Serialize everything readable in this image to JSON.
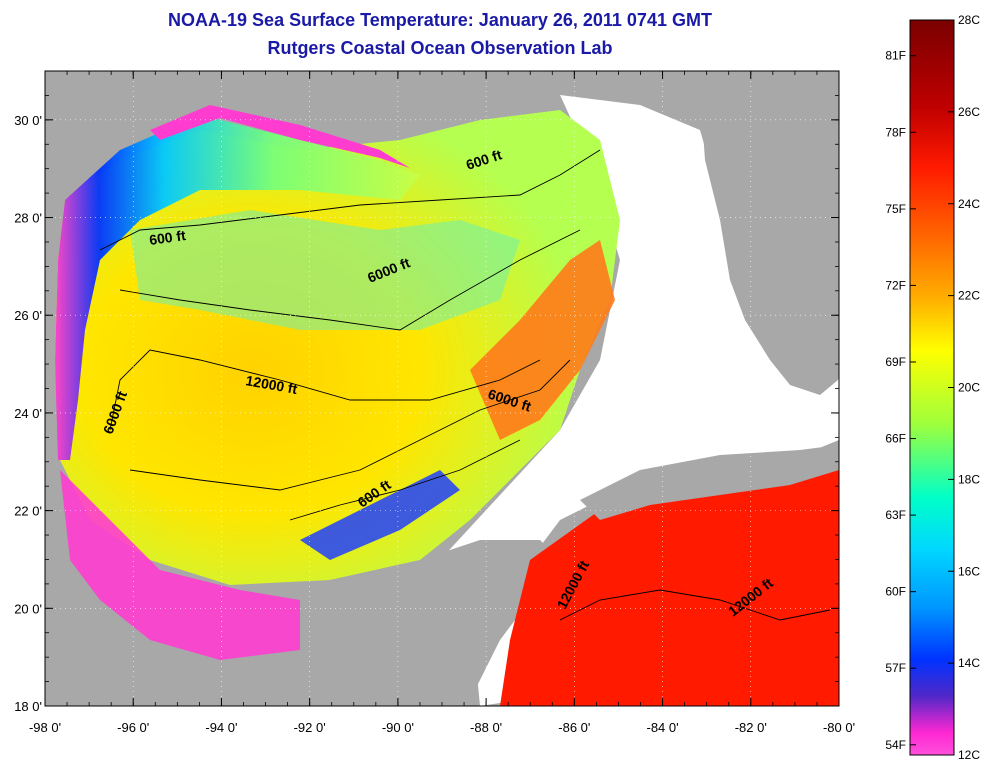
{
  "header": {
    "title": "NOAA-19 Sea Surface Temperature:  January 26, 2011 0741 GMT",
    "subtitle": "Rutgers Coastal Ocean Observation Lab"
  },
  "map": {
    "lat_ticks": [
      "30 0'",
      "28 0'",
      "26 0'",
      "24 0'",
      "22 0'",
      "20 0'",
      "18 0'"
    ],
    "lon_ticks": [
      "-98 0'",
      "-96 0'",
      "-94 0'",
      "-92 0'",
      "-90 0'",
      "-88 0'",
      "-86 0'",
      "-84 0'",
      "-82 0'",
      "-80 0'"
    ],
    "lat_values": [
      30,
      28,
      26,
      24,
      22,
      20,
      18
    ],
    "lon_values": [
      -98,
      -96,
      -94,
      -92,
      -90,
      -88,
      -86,
      -84,
      -82,
      -80
    ],
    "contour_labels": [
      "600 ft",
      "600 ft",
      "6000 ft",
      "12000 ft",
      "6000 ft",
      "6000 ft",
      "600 ft",
      "12000 ft",
      "12000 ft"
    ],
    "colors": {
      "land": "#a8a8a8",
      "nodata": "#ffffff",
      "contour": "#000000"
    }
  },
  "colorbar": {
    "celsius": [
      "28C",
      "26C",
      "24C",
      "22C",
      "20C",
      "18C",
      "16C",
      "14C",
      "12C"
    ],
    "fahrenheit": [
      "81F",
      "78F",
      "75F",
      "72F",
      "69F",
      "66F",
      "63F",
      "60F",
      "57F",
      "54F"
    ],
    "celsius_values": [
      28,
      26,
      24,
      22,
      20,
      18,
      16,
      14,
      12
    ],
    "fahrenheit_values": [
      81,
      78,
      75,
      72,
      69,
      66,
      63,
      60,
      57,
      54
    ],
    "stops": [
      "#7a0000",
      "#c00000",
      "#ff1a00",
      "#ff6a00",
      "#ffb000",
      "#ffff00",
      "#9eff3c",
      "#00ffc8",
      "#00d7ff",
      "#0096ff",
      "#0032ff",
      "#5028c8",
      "#ff28d2",
      "#ff50dc"
    ]
  }
}
